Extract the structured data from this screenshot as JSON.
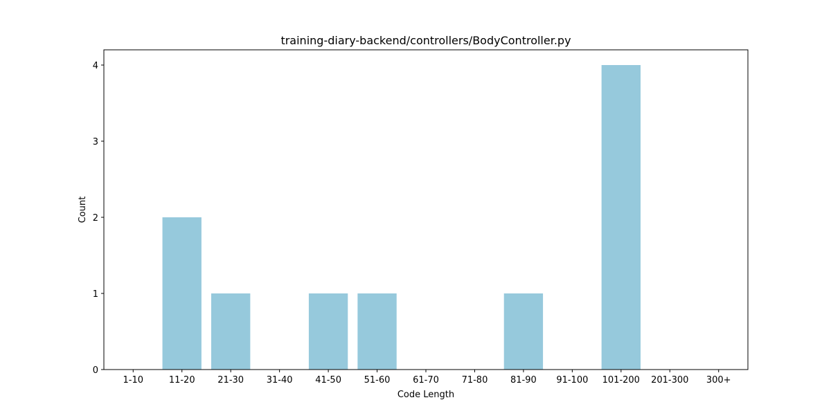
{
  "chart_data": {
    "type": "bar",
    "title": "training-diary-backend/controllers/BodyController.py",
    "xlabel": "Code Length",
    "ylabel": "Count",
    "categories": [
      "1-10",
      "11-20",
      "21-30",
      "31-40",
      "41-50",
      "51-60",
      "61-70",
      "71-80",
      "81-90",
      "91-100",
      "101-200",
      "201-300",
      "300+"
    ],
    "values": [
      0,
      2,
      1,
      0,
      1,
      1,
      0,
      0,
      1,
      0,
      4,
      0,
      0
    ],
    "ylim": [
      0,
      4.2
    ],
    "yticks": [
      "0",
      "1",
      "2",
      "3",
      "4"
    ],
    "bar_color": "#96c9dc",
    "grid": false,
    "legend": "none"
  }
}
